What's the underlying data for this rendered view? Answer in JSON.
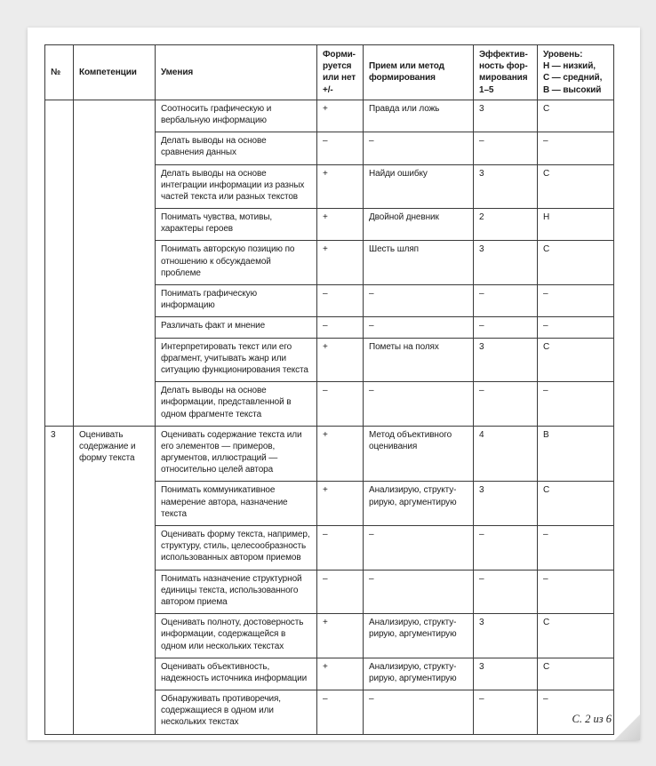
{
  "page": {
    "background_color": "#ececec",
    "paper_color": "#ffffff",
    "footer": "С. 2 из 6"
  },
  "table": {
    "border_color": "#3a3a3a",
    "headers": [
      {
        "label": "№"
      },
      {
        "label": "Компетенции"
      },
      {
        "label": "Умения"
      },
      {
        "label": "Форми-\nруется\nили нет\n+/-"
      },
      {
        "label": "Прием или метод\nформирования"
      },
      {
        "label": "Эффектив-\nность фор-\nмирования\n1–5"
      },
      {
        "label": "Уровень:\nН — низкий,\nС — средний,\nВ — высокий"
      }
    ],
    "sections": [
      {
        "num": "",
        "competency": "",
        "rows": [
          {
            "skill": "Соотносить графическую и вербальную информацию",
            "formed": "+",
            "method": "Правда или ложь",
            "effectiveness": "3",
            "level": "С"
          },
          {
            "skill": "Делать выводы на основе сравнения данных",
            "formed": "–",
            "method": "–",
            "effectiveness": "–",
            "level": "–"
          },
          {
            "skill": "Делать выводы на основе интеграции информации из разных частей текста или разных текстов",
            "formed": "+",
            "method": "Найди ошибку",
            "effectiveness": "3",
            "level": "С"
          },
          {
            "skill": "Понимать чувства, мотивы, характеры героев",
            "formed": "+",
            "method": "Двойной дневник",
            "effectiveness": "2",
            "level": "Н"
          },
          {
            "skill": "Понимать авторскую позицию по отношению к обсуждаемой проблеме",
            "formed": "+",
            "method": "Шесть шляп",
            "effectiveness": "3",
            "level": "С"
          },
          {
            "skill": "Понимать графическую информацию",
            "formed": "–",
            "method": "–",
            "effectiveness": "–",
            "level": "–"
          },
          {
            "skill": "Различать факт и мнение",
            "formed": "–",
            "method": "–",
            "effectiveness": "–",
            "level": "–"
          },
          {
            "skill": "Интерпретировать текст или его фрагмент, учитывать жанр или ситуацию функционирования текста",
            "formed": "+",
            "method": "Пометы на полях",
            "effectiveness": "3",
            "level": "С"
          },
          {
            "skill": "Делать выводы на основе информации, представленной в одном фрагменте текста",
            "formed": "–",
            "method": "–",
            "effectiveness": "–",
            "level": "–"
          }
        ]
      },
      {
        "num": "3",
        "competency": "Оценивать содержание и форму текста",
        "rows": [
          {
            "skill": "Оценивать содержание текста или его элементов — примеров, аргументов, иллюстраций — относительно целей автора",
            "formed": "+",
            "method": "Метод объективного\nоценивания",
            "effectiveness": "4",
            "level": "В"
          },
          {
            "skill": "Понимать коммуникативное намерение автора, назначение текста",
            "formed": "+",
            "method": "Анализирую, структу-\nрирую, аргументирую",
            "effectiveness": "3",
            "level": "С"
          },
          {
            "skill": "Оценивать форму текста, например, структуру, стиль, целесообразность использованных автором приемов",
            "formed": "–",
            "method": "–",
            "effectiveness": "–",
            "level": "–"
          },
          {
            "skill": "Понимать назначение структурной единицы текста, использованного автором приема",
            "formed": "–",
            "method": "–",
            "effectiveness": "–",
            "level": "–"
          },
          {
            "skill": "Оценивать полноту, достоверность информации, содержащейся в одном или нескольких текстах",
            "formed": "+",
            "method": "Анализирую, структу-\nрирую, аргументирую",
            "effectiveness": "3",
            "level": "С"
          },
          {
            "skill": "Оценивать объективность, надежность источника информации",
            "formed": "+",
            "method": "Анализирую, структу-\nрирую, аргументирую",
            "effectiveness": "3",
            "level": "С"
          },
          {
            "skill": "Обнаруживать противоречия, содержащиеся в одном или нескольких текстах",
            "formed": "–",
            "method": "–",
            "effectiveness": "–",
            "level": "–"
          }
        ]
      }
    ]
  }
}
